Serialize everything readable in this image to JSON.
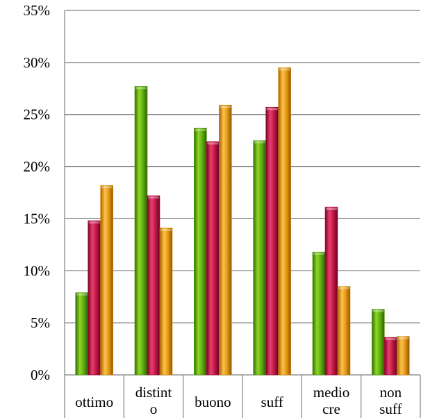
{
  "chart_data": {
    "type": "bar",
    "title": "",
    "xlabel": "",
    "ylabel": "",
    "categories": [
      [
        "ottimo"
      ],
      [
        "distint",
        "o"
      ],
      [
        "buono"
      ],
      [
        "suff"
      ],
      [
        "medio",
        "cre"
      ],
      [
        "non",
        "suff"
      ]
    ],
    "series": [
      {
        "color": "#4e9a06",
        "values": [
          7.9,
          27.7,
          23.7,
          22.5,
          11.8,
          6.3
        ]
      },
      {
        "color": "#b3103e",
        "values": [
          14.8,
          17.2,
          22.4,
          25.7,
          16.1,
          3.6
        ]
      },
      {
        "color": "#d58a0a",
        "values": [
          18.2,
          14.1,
          25.9,
          29.5,
          8.5,
          3.7
        ]
      }
    ],
    "ylim": [
      0,
      35
    ],
    "yticks": [
      "0%",
      "5%",
      "10%",
      "15%",
      "20%",
      "25%",
      "30%",
      "35%"
    ],
    "grid": true,
    "legend": "none"
  }
}
